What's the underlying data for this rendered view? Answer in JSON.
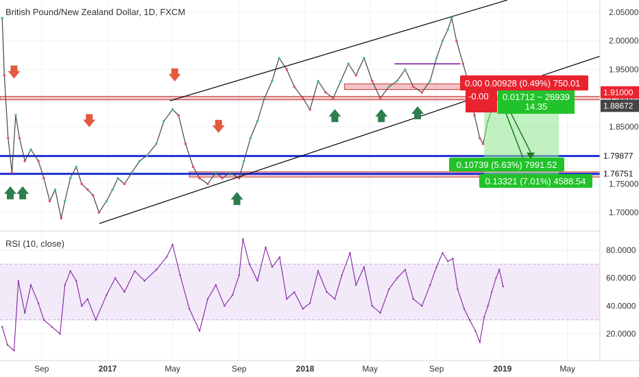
{
  "chart_title": "British Pound/New Zealand Dollar, 1D, FXCM",
  "colors": {
    "up_candle": "#53b987",
    "down_candle": "#eb4d5c",
    "channel_line": "#111111",
    "support_line": "#1b2fd6",
    "resistance_zone": "#e57b8a",
    "rsi_line": "#8b30a8",
    "rsi_band": "#eadcf5",
    "arrow_down": "#e55a3c",
    "arrow_up": "#2e7d4e",
    "tp_zone": "#8ee68e",
    "sl_zone": "#f08a8a",
    "price_badge_red": "#e8232f",
    "price_badge_green": "#22c22a"
  },
  "chart_data": [
    {
      "type": "line",
      "panel": "price",
      "series_label": "",
      "ylim": [
        1.665,
        2.07
      ],
      "y_ticks": [
        1.7,
        1.75,
        1.8,
        1.85,
        1.9,
        1.95,
        2.0,
        2.05
      ],
      "y_tick_labels": [
        "1.70000",
        "1.75000",
        "1.80000",
        "1.85000",
        "1.90000",
        "1.95000",
        "2.00000",
        "2.05000"
      ],
      "x_tick_labels": [
        "Sep",
        "2017",
        "May",
        "Sep",
        "2018",
        "May",
        "Sep",
        "2019",
        "May"
      ],
      "points": [
        [
          "2016-06-20",
          2.04
        ],
        [
          "2016-06-24",
          1.94
        ],
        [
          "2016-07-01",
          1.83
        ],
        [
          "2016-07-08",
          1.77
        ],
        [
          "2016-07-15",
          1.87
        ],
        [
          "2016-07-22",
          1.83
        ],
        [
          "2016-08-01",
          1.79
        ],
        [
          "2016-08-12",
          1.81
        ],
        [
          "2016-08-26",
          1.79
        ],
        [
          "2016-09-05",
          1.76
        ],
        [
          "2016-09-16",
          1.72
        ],
        [
          "2016-09-26",
          1.74
        ],
        [
          "2016-10-07",
          1.69
        ],
        [
          "2016-10-14",
          1.72
        ],
        [
          "2016-10-24",
          1.76
        ],
        [
          "2016-11-04",
          1.78
        ],
        [
          "2016-11-14",
          1.75
        ],
        [
          "2016-11-25",
          1.74
        ],
        [
          "2016-12-05",
          1.73
        ],
        [
          "2016-12-16",
          1.7
        ],
        [
          "2016-12-30",
          1.72
        ],
        [
          "2017-01-10",
          1.74
        ],
        [
          "2017-01-20",
          1.76
        ],
        [
          "2017-02-01",
          1.75
        ],
        [
          "2017-02-15",
          1.77
        ],
        [
          "2017-03-01",
          1.79
        ],
        [
          "2017-03-15",
          1.8
        ],
        [
          "2017-04-01",
          1.82
        ],
        [
          "2017-04-15",
          1.86
        ],
        [
          "2017-05-01",
          1.88
        ],
        [
          "2017-05-12",
          1.87
        ],
        [
          "2017-05-25",
          1.82
        ],
        [
          "2017-06-08",
          1.78
        ],
        [
          "2017-06-20",
          1.76
        ],
        [
          "2017-07-05",
          1.75
        ],
        [
          "2017-07-20",
          1.77
        ],
        [
          "2017-08-01",
          1.76
        ],
        [
          "2017-08-15",
          1.77
        ],
        [
          "2017-09-01",
          1.76
        ],
        [
          "2017-09-10",
          1.79
        ],
        [
          "2017-09-22",
          1.83
        ],
        [
          "2017-10-05",
          1.86
        ],
        [
          "2017-10-18",
          1.9
        ],
        [
          "2017-11-01",
          1.93
        ],
        [
          "2017-11-14",
          1.97
        ],
        [
          "2017-11-28",
          1.95
        ],
        [
          "2017-12-12",
          1.92
        ],
        [
          "2017-12-28",
          1.9
        ],
        [
          "2018-01-10",
          1.88
        ],
        [
          "2018-01-25",
          1.93
        ],
        [
          "2018-02-08",
          1.91
        ],
        [
          "2018-02-22",
          1.9
        ],
        [
          "2018-03-08",
          1.93
        ],
        [
          "2018-03-22",
          1.96
        ],
        [
          "2018-04-05",
          1.94
        ],
        [
          "2018-04-20",
          1.97
        ],
        [
          "2018-05-05",
          1.93
        ],
        [
          "2018-05-20",
          1.9
        ],
        [
          "2018-06-05",
          1.92
        ],
        [
          "2018-06-20",
          1.93
        ],
        [
          "2018-07-05",
          1.95
        ],
        [
          "2018-07-20",
          1.92
        ],
        [
          "2018-08-05",
          1.91
        ],
        [
          "2018-08-20",
          1.93
        ],
        [
          "2018-09-01",
          1.97
        ],
        [
          "2018-09-12",
          2.0
        ],
        [
          "2018-09-22",
          2.02
        ],
        [
          "2018-09-29",
          2.04
        ],
        [
          "2018-10-08",
          2.0
        ],
        [
          "2018-10-20",
          1.96
        ],
        [
          "2018-11-01",
          1.92
        ],
        [
          "2018-11-10",
          1.87
        ],
        [
          "2018-11-20",
          1.83
        ],
        [
          "2018-11-26",
          1.82
        ],
        [
          "2018-12-05",
          1.86
        ],
        [
          "2018-12-15",
          1.89
        ],
        [
          "2018-12-24",
          1.9
        ],
        [
          "2019-01-02",
          1.886
        ]
      ]
    },
    {
      "type": "line",
      "panel": "rsi",
      "series_label": "RSI (10, close)",
      "ylim": [
        8,
        92
      ],
      "y_ticks": [
        20,
        40,
        60,
        80
      ],
      "y_tick_labels": [
        "20.0000",
        "40.0000",
        "60.0000",
        "80.0000"
      ],
      "band": [
        30,
        70
      ],
      "points": [
        [
          "2016-06-20",
          25
        ],
        [
          "2016-06-30",
          12
        ],
        [
          "2016-07-12",
          8
        ],
        [
          "2016-07-20",
          58
        ],
        [
          "2016-08-01",
          35
        ],
        [
          "2016-08-12",
          55
        ],
        [
          "2016-08-26",
          42
        ],
        [
          "2016-09-05",
          30
        ],
        [
          "2016-09-20",
          25
        ],
        [
          "2016-10-05",
          20
        ],
        [
          "2016-10-14",
          55
        ],
        [
          "2016-10-24",
          65
        ],
        [
          "2016-11-04",
          58
        ],
        [
          "2016-11-14",
          40
        ],
        [
          "2016-11-25",
          45
        ],
        [
          "2016-12-10",
          30
        ],
        [
          "2016-12-30",
          48
        ],
        [
          "2017-01-15",
          60
        ],
        [
          "2017-02-01",
          50
        ],
        [
          "2017-02-20",
          65
        ],
        [
          "2017-03-10",
          58
        ],
        [
          "2017-04-01",
          66
        ],
        [
          "2017-04-20",
          75
        ],
        [
          "2017-05-01",
          84
        ],
        [
          "2017-05-15",
          62
        ],
        [
          "2017-06-01",
          38
        ],
        [
          "2017-06-20",
          22
        ],
        [
          "2017-07-05",
          45
        ],
        [
          "2017-07-20",
          55
        ],
        [
          "2017-08-05",
          40
        ],
        [
          "2017-08-20",
          48
        ],
        [
          "2017-09-01",
          62
        ],
        [
          "2017-09-08",
          88
        ],
        [
          "2017-09-20",
          70
        ],
        [
          "2017-10-05",
          58
        ],
        [
          "2017-10-20",
          82
        ],
        [
          "2017-11-01",
          68
        ],
        [
          "2017-11-15",
          75
        ],
        [
          "2017-11-28",
          45
        ],
        [
          "2017-12-12",
          50
        ],
        [
          "2017-12-28",
          38
        ],
        [
          "2018-01-10",
          42
        ],
        [
          "2018-01-25",
          65
        ],
        [
          "2018-02-10",
          50
        ],
        [
          "2018-02-25",
          45
        ],
        [
          "2018-03-10",
          62
        ],
        [
          "2018-03-25",
          78
        ],
        [
          "2018-04-05",
          55
        ],
        [
          "2018-04-20",
          68
        ],
        [
          "2018-05-05",
          40
        ],
        [
          "2018-05-20",
          35
        ],
        [
          "2018-06-05",
          52
        ],
        [
          "2018-06-20",
          60
        ],
        [
          "2018-07-05",
          66
        ],
        [
          "2018-07-20",
          45
        ],
        [
          "2018-08-05",
          40
        ],
        [
          "2018-08-20",
          55
        ],
        [
          "2018-09-01",
          68
        ],
        [
          "2018-09-12",
          78
        ],
        [
          "2018-09-22",
          72
        ],
        [
          "2018-10-01",
          74
        ],
        [
          "2018-10-10",
          52
        ],
        [
          "2018-10-22",
          38
        ],
        [
          "2018-11-01",
          30
        ],
        [
          "2018-11-12",
          22
        ],
        [
          "2018-11-20",
          14
        ],
        [
          "2018-11-28",
          32
        ],
        [
          "2018-12-05",
          40
        ],
        [
          "2018-12-12",
          50
        ],
        [
          "2018-12-20",
          60
        ],
        [
          "2018-12-26",
          66
        ],
        [
          "2019-01-02",
          54
        ]
      ]
    }
  ],
  "levels": {
    "resistance_label": "1.91000",
    "support1_label": "1.79877",
    "support2_label": "1.76751",
    "current_label": "1.88672"
  },
  "position_labels": {
    "sl_top": "0.00  0.00928 (0.49%) 750.01",
    "sl_left": "-0.00",
    "tp_center_1": "0.01712 ~ 26939",
    "tp_center_2": "14.35",
    "tp_mid": "0.10739 (5.63%) 7991.52",
    "tp_bottom": "0.13321 (7.01%) 4588.54"
  }
}
